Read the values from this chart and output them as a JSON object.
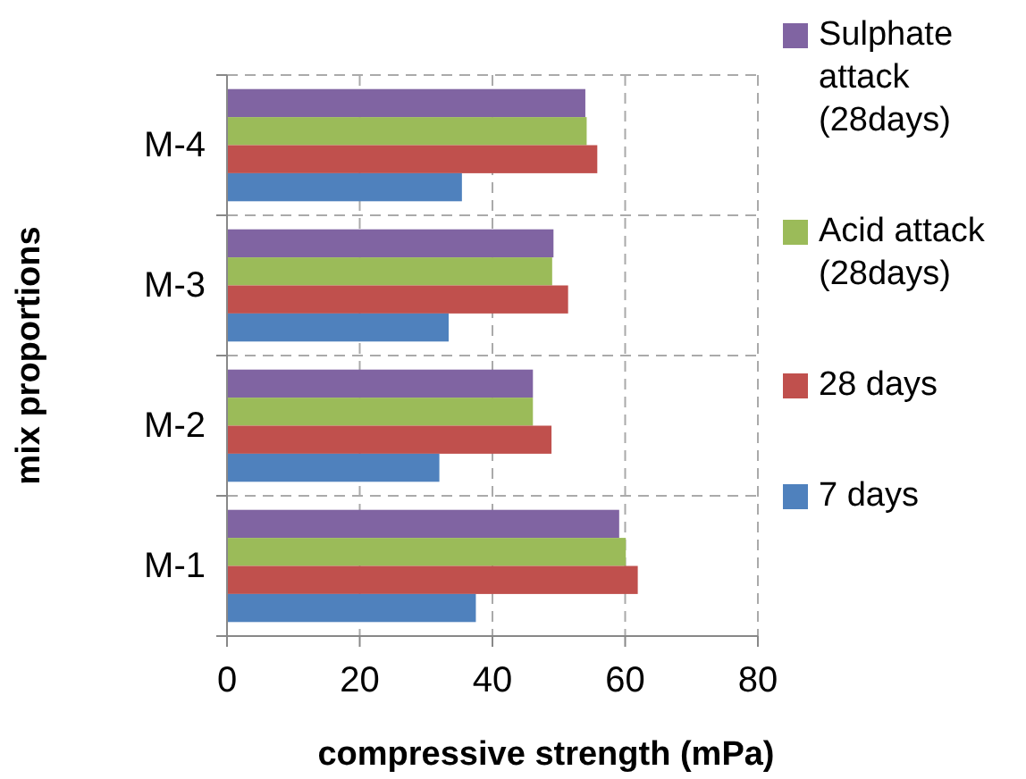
{
  "chart_data": {
    "type": "bar",
    "orientation": "horizontal",
    "xlabel": "compressive strength (mPa)",
    "ylabel": "mix proportions",
    "categories": [
      "M-4",
      "M-3",
      "M-2",
      "M-1"
    ],
    "series": [
      {
        "name": "Sulphate attack (28days)",
        "color": "#8064a2",
        "values": [
          54.0,
          49.2,
          46.1,
          59.1
        ]
      },
      {
        "name": "Acid attack (28days)",
        "color": "#9bbb59",
        "values": [
          54.2,
          49.0,
          46.1,
          60.1
        ]
      },
      {
        "name": "28 days",
        "color": "#c0504d",
        "values": [
          55.8,
          51.4,
          48.9,
          61.9
        ]
      },
      {
        "name": "7 days",
        "color": "#4f81bd",
        "values": [
          35.4,
          33.4,
          32.0,
          37.5
        ]
      }
    ],
    "xlim": [
      0,
      80
    ],
    "xticks": [
      0,
      20,
      40,
      60,
      80
    ],
    "grid": true,
    "legend": "right"
  }
}
